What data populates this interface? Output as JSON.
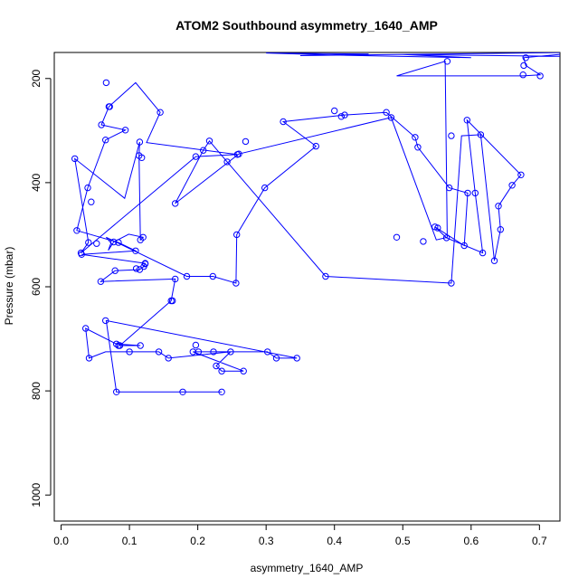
{
  "chart_data": {
    "type": "line",
    "title": "ATOM2 Southbound asymmetry_1640_AMP",
    "xlabel": "asymmetry_1640_AMP",
    "ylabel": "Pressure (mbar)",
    "xlim": [
      -0.01,
      0.73
    ],
    "ylim": [
      1050,
      150
    ],
    "y_inverted": true,
    "grid": false,
    "color": "#0000ff",
    "x_ticks": [
      0.0,
      0.1,
      0.2,
      0.3,
      0.4,
      0.5,
      0.6,
      0.7
    ],
    "x_tick_labels": [
      "0.0",
      "0.1",
      "0.2",
      "0.3",
      "0.4",
      "0.5",
      "0.6",
      "0.7"
    ],
    "y_ticks": [
      200,
      400,
      600,
      800,
      1000
    ],
    "y_tick_labels": [
      "200",
      "400",
      "600",
      "800",
      "1000"
    ],
    "series": [
      {
        "values_x": [
          0.235,
          0.178,
          0.081,
          0.066,
          0.345,
          0.315,
          0.302,
          0.223,
          0.201,
          0.193,
          0.267,
          0.235,
          0.227,
          0.248,
          0.157,
          0.143,
          0.1,
          0.065,
          0.041,
          0.036,
          0.081,
          0.116,
          0.086,
          0.161,
          0.167,
          0.058,
          0.079,
          0.115,
          0.121,
          0.123,
          0.03,
          0.109,
          0.084,
          0.023,
          0.039,
          0.065,
          0.094,
          0.059,
          0.07,
          0.109,
          0.145,
          0.125,
          0.258,
          0.197,
          0.029,
          0.04,
          0.02,
          0.093,
          0.115,
          0.114,
          0.116,
          0.12,
          0.099,
          0.077,
          0.069,
          0.073,
          0.066,
          0.184,
          0.222,
          0.256,
          0.257,
          0.298,
          0.373,
          0.325,
          0.415,
          0.476,
          0.518,
          0.522,
          0.568,
          0.595,
          0.59,
          0.547,
          0.564,
          0.617,
          0.606,
          0.594,
          0.673,
          0.66,
          0.64,
          0.643,
          0.634,
          0.614,
          0.586,
          0.571,
          0.387,
          0.243,
          0.217,
          0.208,
          0.167,
          0.26,
          0.483,
          0.549,
          0.565,
          0.562,
          0.491,
          0.676,
          0.701,
          0.68,
          0.677,
          0.76,
          0.82,
          0.78,
          0.5,
          0.6,
          0.4,
          0.3,
          0.45,
          0.35,
          0.75
        ],
        "values_y": [
          802,
          802,
          802,
          665,
          737,
          737,
          725,
          725,
          725,
          725,
          762,
          762,
          752,
          725,
          737,
          725,
          725,
          725,
          737,
          680,
          710,
          713,
          713,
          627,
          585,
          590,
          569,
          567,
          561,
          555,
          538,
          531,
          515,
          492,
          410,
          318,
          299,
          289,
          254,
          208,
          265,
          323,
          346,
          350,
          535,
          515,
          354,
          430,
          322,
          348,
          510,
          505,
          499,
          514,
          530,
          516,
          505,
          580,
          580,
          593,
          500,
          410,
          330,
          283,
          270,
          265,
          313,
          332,
          410,
          420,
          521,
          485,
          506,
          535,
          420,
          280,
          385,
          405,
          445,
          490,
          550,
          308,
          310,
          593,
          580,
          360,
          320,
          338,
          440,
          345,
          275,
          510,
          505,
          167,
          195,
          195,
          193,
          175,
          160,
          150,
          152,
          158,
          154,
          160,
          155,
          151,
          153,
          156,
          150
        ]
      }
    ],
    "points_x": [
      0.235,
      0.178,
      0.081,
      0.345,
      0.315,
      0.302,
      0.223,
      0.201,
      0.193,
      0.267,
      0.235,
      0.227,
      0.248,
      0.157,
      0.143,
      0.1,
      0.065,
      0.041,
      0.036,
      0.081,
      0.116,
      0.086,
      0.161,
      0.167,
      0.058,
      0.079,
      0.115,
      0.121,
      0.123,
      0.03,
      0.109,
      0.084,
      0.023,
      0.039,
      0.065,
      0.094,
      0.059,
      0.07,
      0.066,
      0.071,
      0.145,
      0.258,
      0.197,
      0.029,
      0.04,
      0.02,
      0.115,
      0.114,
      0.116,
      0.12,
      0.077,
      0.184,
      0.222,
      0.256,
      0.257,
      0.298,
      0.373,
      0.325,
      0.415,
      0.476,
      0.518,
      0.522,
      0.568,
      0.595,
      0.59,
      0.547,
      0.564,
      0.617,
      0.606,
      0.594,
      0.673,
      0.66,
      0.64,
      0.643,
      0.634,
      0.614,
      0.571,
      0.387,
      0.243,
      0.217,
      0.208,
      0.167,
      0.26,
      0.483,
      0.565,
      0.491,
      0.676,
      0.701,
      0.68,
      0.677,
      0.11,
      0.118,
      0.052,
      0.044,
      0.084,
      0.123,
      0.197,
      0.27,
      0.571,
      0.551,
      0.53,
      0.41,
      0.4,
      0.163
    ],
    "points_y": [
      802,
      802,
      802,
      737,
      737,
      725,
      725,
      725,
      725,
      762,
      762,
      752,
      725,
      737,
      725,
      725,
      665,
      737,
      680,
      710,
      713,
      713,
      627,
      585,
      590,
      569,
      567,
      561,
      555,
      538,
      531,
      515,
      492,
      410,
      318,
      299,
      289,
      254,
      208,
      254,
      265,
      346,
      350,
      535,
      515,
      354,
      322,
      348,
      510,
      505,
      514,
      580,
      580,
      593,
      500,
      410,
      330,
      283,
      270,
      265,
      313,
      332,
      410,
      420,
      521,
      485,
      506,
      535,
      420,
      280,
      385,
      405,
      445,
      490,
      550,
      308,
      593,
      580,
      360,
      320,
      338,
      440,
      345,
      275,
      167,
      505,
      193,
      195,
      160,
      175,
      565,
      352,
      517,
      437,
      713,
      556,
      712,
      321,
      310,
      487,
      513,
      273,
      262,
      627
    ]
  }
}
